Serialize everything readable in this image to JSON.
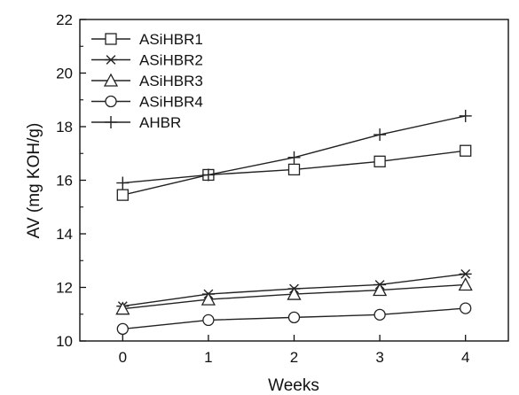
{
  "chart_data": {
    "type": "line",
    "x": [
      0,
      1,
      2,
      3,
      4
    ],
    "xlabel": "Weeks",
    "ylabel": "AV (mg KOH/g)",
    "xlim": [
      -0.5,
      4.5
    ],
    "ylim": [
      10,
      22
    ],
    "xticks": [
      "0",
      "1",
      "2",
      "3",
      "4"
    ],
    "yticks": [
      "10",
      "12",
      "14",
      "16",
      "18",
      "20",
      "22"
    ],
    "grid": false,
    "legend_position": "top-left",
    "series": [
      {
        "name": "ASiHBR1",
        "marker": "square",
        "values": [
          15.45,
          16.2,
          16.4,
          16.7,
          17.1
        ]
      },
      {
        "name": "ASiHBR2",
        "marker": "asterisk",
        "values": [
          11.3,
          11.75,
          11.95,
          12.1,
          12.5
        ]
      },
      {
        "name": "ASiHBR3",
        "marker": "triangle",
        "values": [
          11.2,
          11.55,
          11.75,
          11.9,
          12.1
        ]
      },
      {
        "name": "ASiHBR4",
        "marker": "circle",
        "values": [
          10.45,
          10.78,
          10.88,
          10.98,
          11.22
        ]
      },
      {
        "name": "AHBR",
        "marker": "plus",
        "values": [
          15.9,
          16.2,
          16.85,
          17.7,
          18.4
        ]
      }
    ],
    "colors": {
      "line": "#222222",
      "axis": "#111111",
      "background": "#ffffff"
    }
  }
}
